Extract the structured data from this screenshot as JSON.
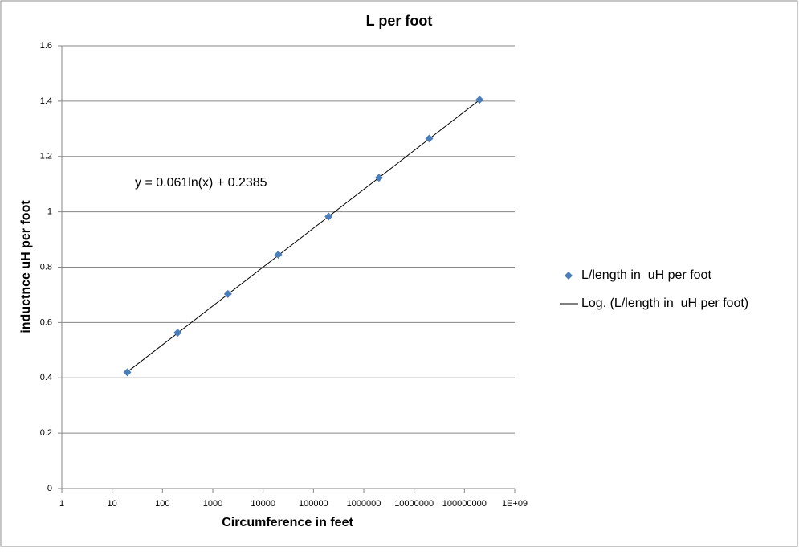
{
  "chart_data": {
    "type": "scatter",
    "title": "L per foot",
    "x_label": "Circumference in feet",
    "y_label": "inductnce uH per foot",
    "annotation": "y = 0.061ln(x) + 0.2385",
    "xscale": "log",
    "xlim": [
      1,
      1000000000
    ],
    "xticks": [
      1,
      10,
      100,
      1000,
      10000,
      100000,
      1000000,
      10000000,
      100000000,
      {
        "value": 1000000000,
        "label": "1E+09"
      }
    ],
    "ylim": [
      0,
      1.6
    ],
    "yticks": [
      0,
      0.2,
      0.4,
      0.6,
      0.8,
      1,
      1.2,
      1.4,
      1.6
    ],
    "grid": true,
    "legend": "right",
    "series": [
      {
        "name": "L/length in  uH per foot",
        "type": "scatter",
        "color": "#4a7ebb",
        "x": [
          20,
          200,
          2000,
          20000,
          200000,
          2000000,
          20000000,
          200000000
        ],
        "values": [
          0.42,
          0.563,
          0.703,
          0.845,
          0.983,
          1.123,
          1.265,
          1.405
        ]
      },
      {
        "name": "Log. (L/length in  uH per foot)",
        "type": "line",
        "color": "#000000",
        "x": [
          20,
          200000000
        ],
        "values": [
          0.4212,
          1.4042
        ]
      }
    ]
  }
}
